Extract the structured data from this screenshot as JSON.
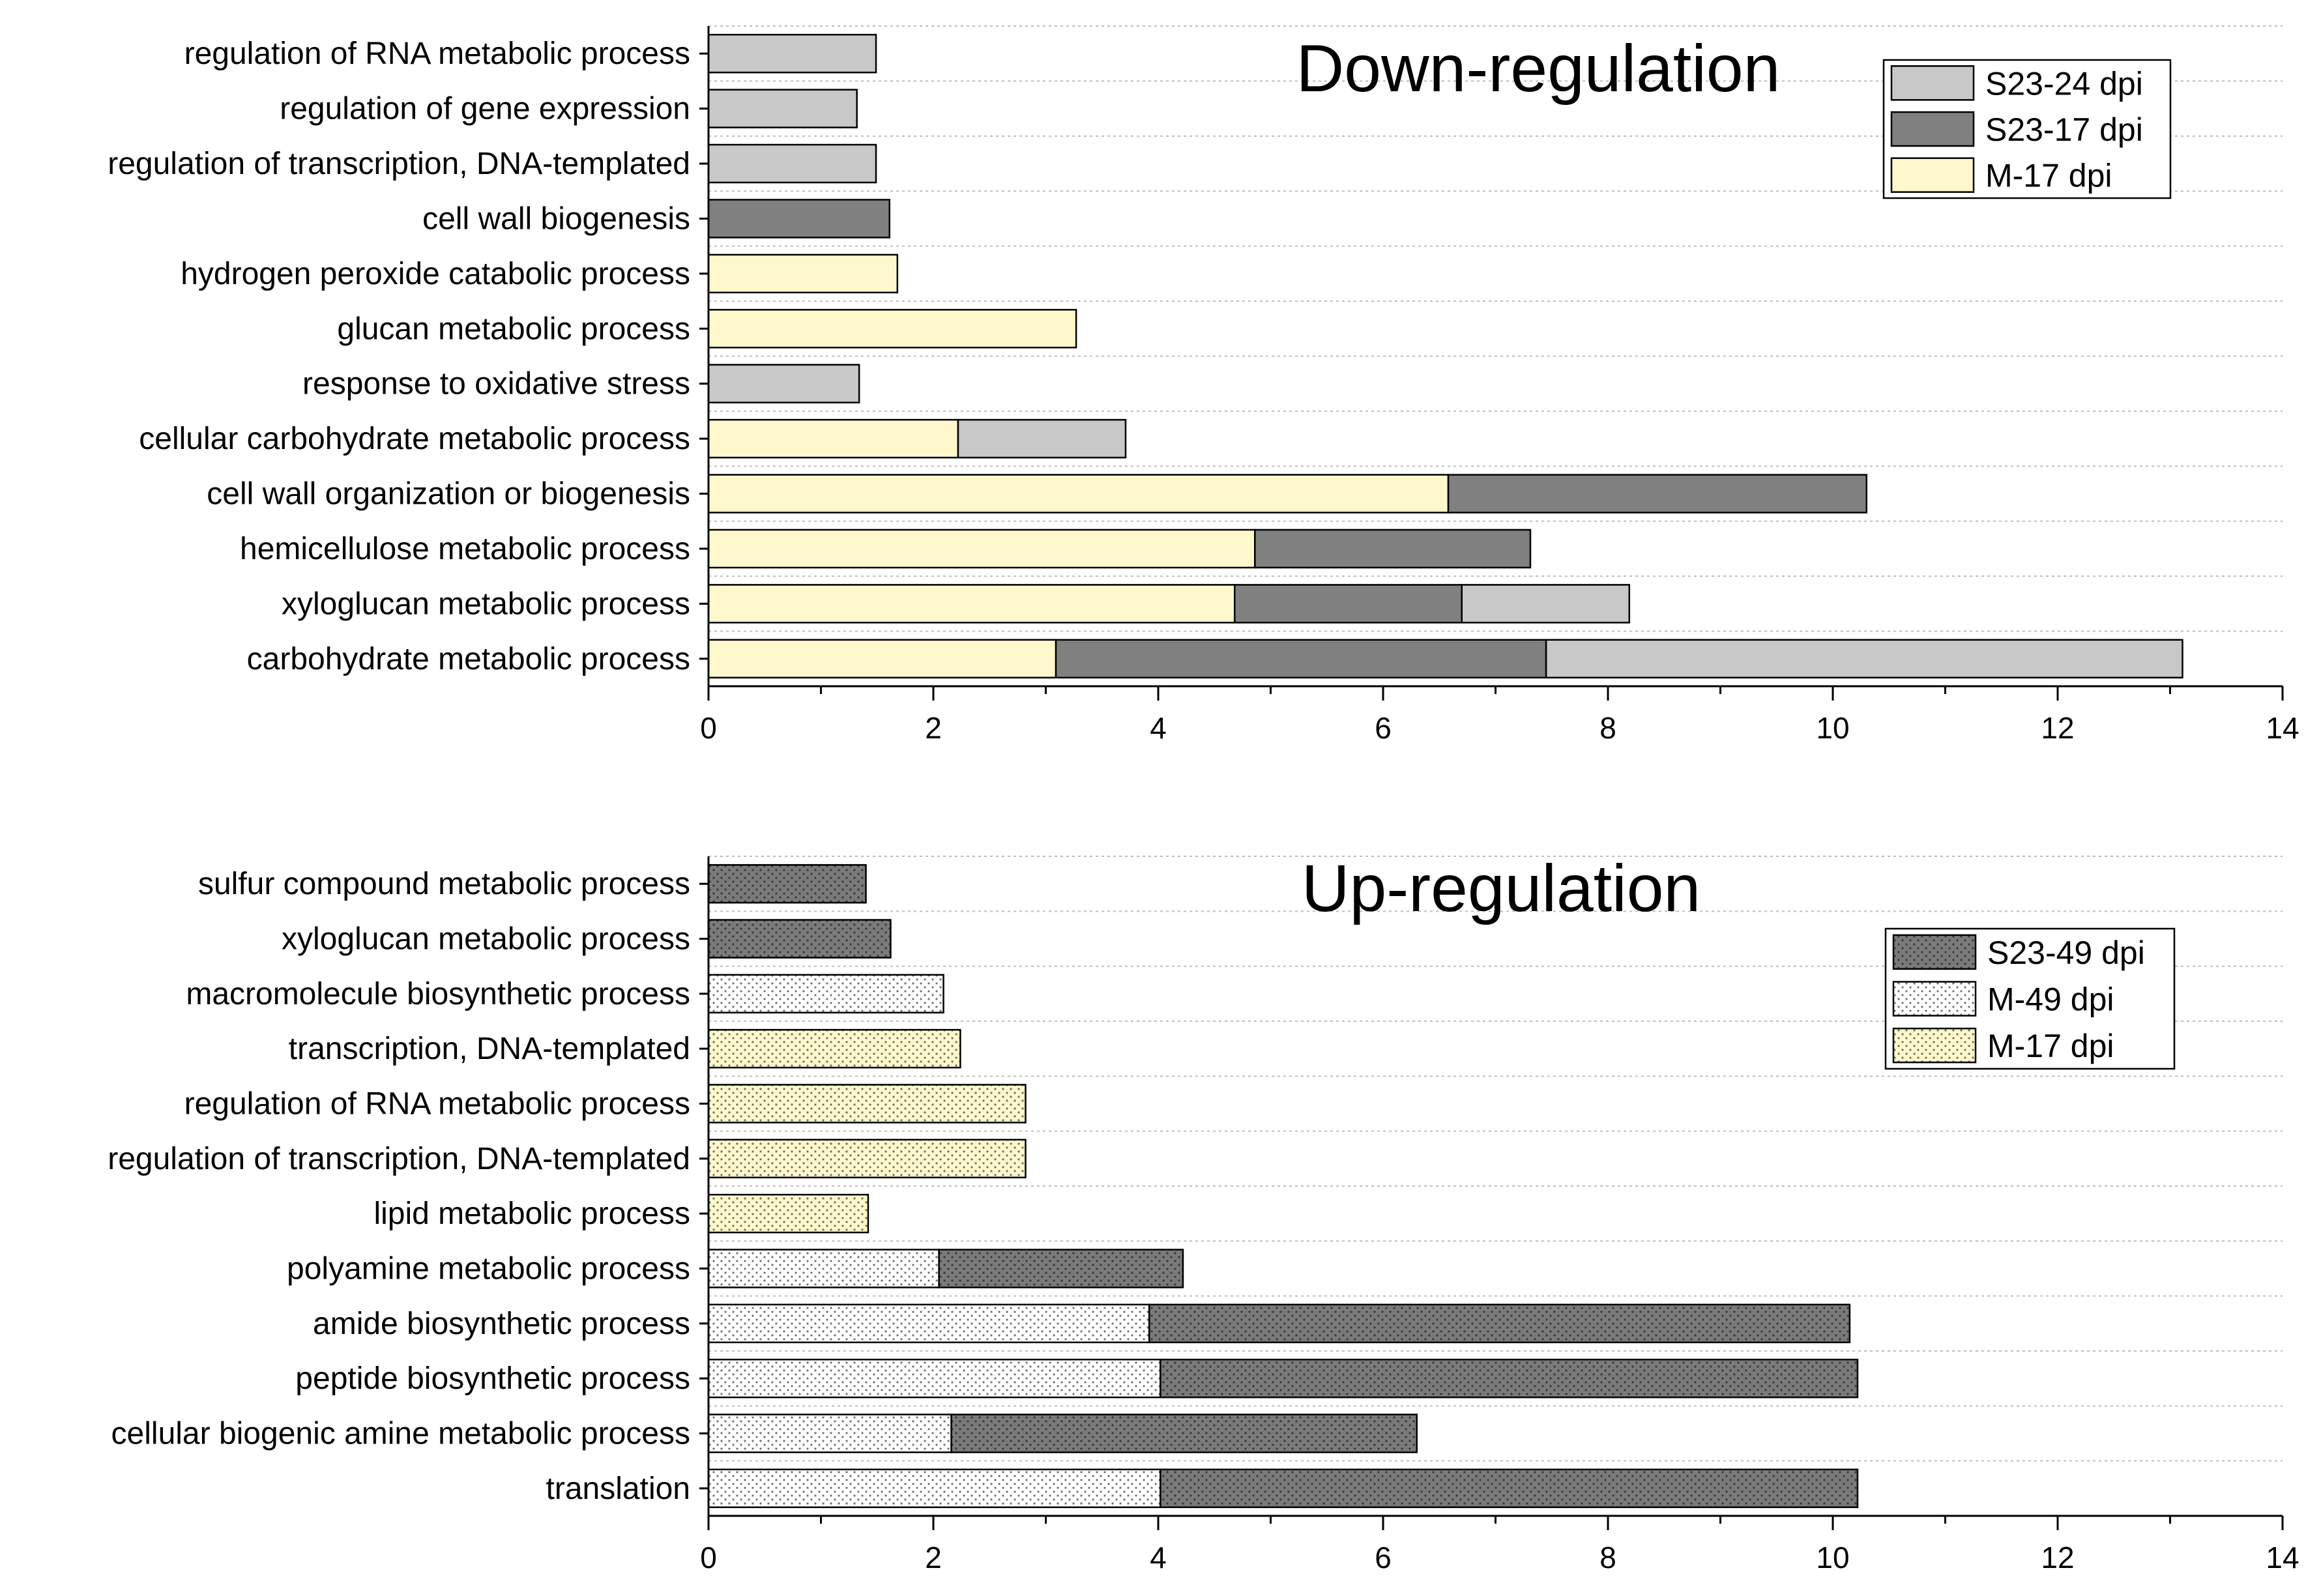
{
  "chart_data": [
    {
      "type": "bar",
      "orientation": "horizontal",
      "stacked": true,
      "title": "Down-regulation",
      "xlabel": "",
      "ylabel": "",
      "xlim": [
        0,
        14
      ],
      "xticks": [
        0,
        2,
        4,
        6,
        8,
        10,
        12,
        14
      ],
      "grid": "horizontal dotted",
      "legend_position": "top-right",
      "categories": [
        "regulation of RNA metabolic process",
        "regulation of gene expression",
        "regulation of transcription, DNA-templated",
        "cell wall biogenesis",
        "hydrogen peroxide catabolic process",
        "glucan metabolic process",
        "response to oxidative stress",
        "cellular carbohydrate metabolic process",
        "cell wall organization or biogenesis",
        "hemicellulose metabolic process",
        "xyloglucan metabolic process",
        "carbohydrate metabolic process"
      ],
      "series": [
        {
          "name": "M-17 dpi",
          "color": "#fff8cc",
          "pattern": "solid",
          "values": [
            0,
            0,
            0,
            0,
            1.68,
            3.27,
            0,
            2.22,
            6.58,
            4.86,
            4.68,
            3.09
          ]
        },
        {
          "name": "S23-17 dpi",
          "color": "#808080",
          "pattern": "solid",
          "values": [
            0,
            0,
            0,
            1.61,
            0,
            0,
            0,
            0,
            3.72,
            2.45,
            2.02,
            4.36
          ]
        },
        {
          "name": "S23-24 dpi",
          "color": "#c8c8c8",
          "pattern": "solid",
          "values": [
            1.49,
            1.32,
            1.49,
            0,
            0,
            0,
            1.34,
            1.49,
            0,
            0,
            1.49,
            5.66
          ]
        }
      ],
      "legend": [
        "S23-24 dpi",
        "S23-17 dpi",
        "M-17 dpi"
      ]
    },
    {
      "type": "bar",
      "orientation": "horizontal",
      "stacked": true,
      "title": "Up-regulation",
      "xlabel": "",
      "ylabel": "",
      "xlim": [
        0,
        14
      ],
      "xticks": [
        0,
        2,
        4,
        6,
        8,
        10,
        12,
        14
      ],
      "grid": "horizontal dotted",
      "legend_position": "top-right",
      "categories": [
        "sulfur compound metabolic process",
        "xyloglucan metabolic process",
        "macromolecule biosynthetic process",
        "transcription, DNA-templated",
        "regulation of RNA metabolic process",
        "regulation of transcription, DNA-templated",
        "lipid metabolic process",
        "polyamine metabolic process",
        "amide biosynthetic process",
        "peptide biosynthetic process",
        "cellular biogenic amine metabolic process",
        "translation"
      ],
      "series": [
        {
          "name": "M-17 dpi",
          "color": "#fff8cc",
          "pattern": "dots",
          "values": [
            0,
            0,
            0,
            2.24,
            2.82,
            2.82,
            1.42,
            0,
            0,
            0,
            0,
            0
          ]
        },
        {
          "name": "M-49 dpi",
          "color": "#ffffff",
          "pattern": "dots",
          "values": [
            0,
            0,
            2.09,
            0,
            0,
            0,
            0,
            2.05,
            3.92,
            4.02,
            2.16,
            4.02
          ]
        },
        {
          "name": "S23-49 dpi",
          "color": "#7a7a7a",
          "pattern": "dots",
          "values": [
            1.4,
            1.62,
            0,
            0,
            0,
            0,
            0,
            2.17,
            6.23,
            6.2,
            4.14,
            6.2
          ]
        }
      ],
      "legend": [
        "S23-49 dpi",
        "M-49 dpi",
        "M-17 dpi"
      ]
    }
  ]
}
